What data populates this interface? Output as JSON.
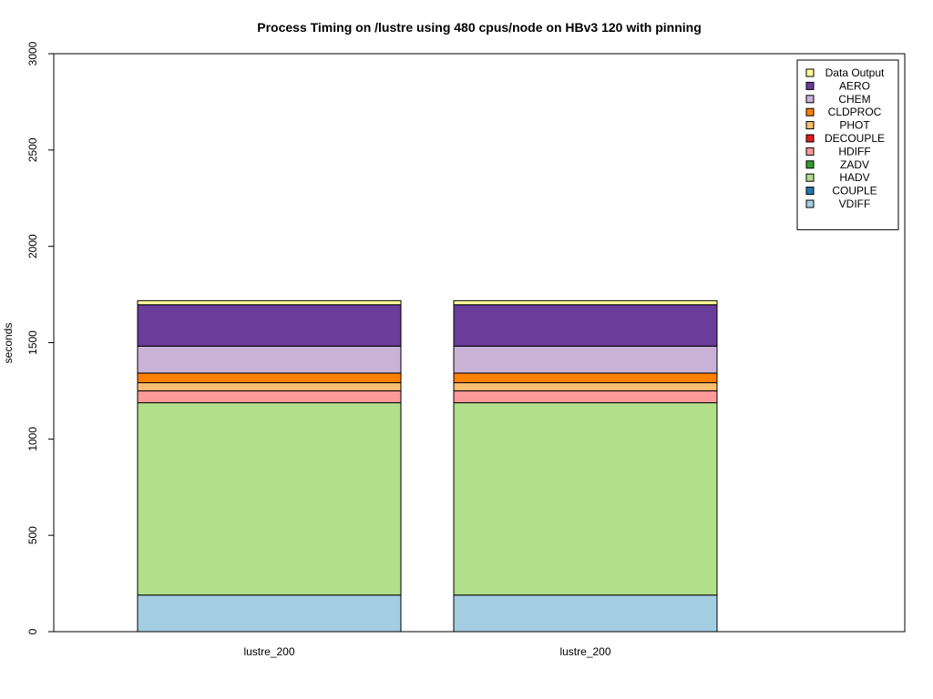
{
  "chart_data": {
    "type": "bar",
    "stacked": true,
    "title": "Process Timing on /lustre using 480 cpus/node on HBv3 120 with pinning",
    "xlabel": "",
    "ylabel": "seconds",
    "ylim": [
      0,
      3000
    ],
    "yticks": [
      0,
      500,
      1000,
      1500,
      2000,
      2500,
      3000
    ],
    "categories": [
      "lustre_200",
      "lustre_200"
    ],
    "legend_position": "top-right",
    "grid": false,
    "series": [
      {
        "name": "VDIFF",
        "color": "#a6cee3",
        "values": [
          190,
          190
        ]
      },
      {
        "name": "COUPLE",
        "color": "#1f78b4",
        "values": [
          0,
          0
        ]
      },
      {
        "name": "HADV",
        "color": "#b2df8a",
        "values": [
          998,
          998
        ]
      },
      {
        "name": "ZADV",
        "color": "#33a02c",
        "values": [
          0,
          0
        ]
      },
      {
        "name": "HDIFF",
        "color": "#fb9a99",
        "values": [
          62,
          62
        ]
      },
      {
        "name": "DECOUPLE",
        "color": "#e31a1c",
        "values": [
          0,
          0
        ]
      },
      {
        "name": "PHOT",
        "color": "#fdbf6f",
        "values": [
          42,
          42
        ]
      },
      {
        "name": "CLDPROC",
        "color": "#ff7f00",
        "values": [
          50,
          50
        ]
      },
      {
        "name": "CHEM",
        "color": "#cab2d6",
        "values": [
          140,
          140
        ]
      },
      {
        "name": "AERO",
        "color": "#6a3d9a",
        "values": [
          215,
          215
        ]
      },
      {
        "name": "Data Output",
        "color": "#ffff99",
        "values": [
          21,
          21
        ]
      }
    ]
  }
}
